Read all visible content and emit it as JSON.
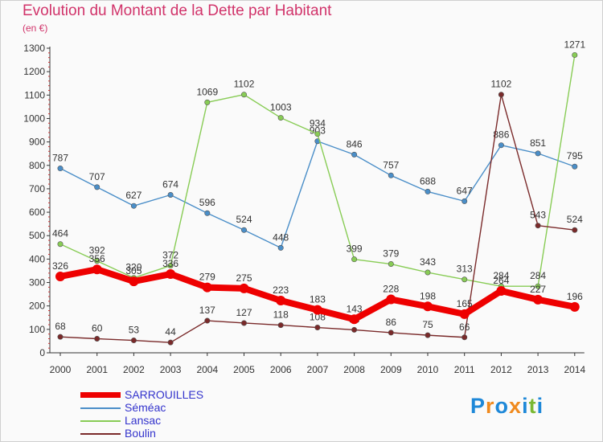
{
  "chart_data": {
    "type": "line",
    "title": "Evolution du Montant de la Dette par Habitant",
    "subtitle": "(en €)",
    "x": [
      "2000",
      "2001",
      "2002",
      "2003",
      "2004",
      "2005",
      "2006",
      "2007",
      "2008",
      "2009",
      "2010",
      "2011",
      "2012",
      "2013",
      "2014"
    ],
    "ylim": [
      0,
      1300
    ],
    "yticks": [
      0,
      100,
      200,
      300,
      400,
      500,
      600,
      700,
      800,
      900,
      1000,
      1100,
      1200,
      1300
    ],
    "grid": false,
    "legend_position": "bottom-left",
    "series": [
      {
        "name": "SARROUILLES",
        "color": "#ee0000",
        "values": [
          326,
          356,
          305,
          336,
          279,
          275,
          223,
          183,
          143,
          228,
          198,
          165,
          264,
          227,
          196
        ]
      },
      {
        "name": "Séméac",
        "color": "#4a8ec8",
        "values": [
          787,
          707,
          627,
          674,
          596,
          524,
          448,
          903,
          846,
          757,
          688,
          647,
          886,
          851,
          795
        ]
      },
      {
        "name": "Lansac",
        "color": "#88cc55",
        "values": [
          464,
          392,
          320,
          372,
          1069,
          1102,
          1003,
          934,
          399,
          379,
          343,
          313,
          284,
          284,
          1271
        ]
      },
      {
        "name": "Boulin",
        "color": "#7a2a2a",
        "values": [
          68,
          60,
          53,
          44,
          137,
          127,
          118,
          108,
          98,
          86,
          75,
          66,
          1102,
          543,
          524
        ]
      }
    ]
  },
  "logo": {
    "letters": [
      "P",
      "r",
      "o",
      "x",
      "i",
      "t",
      "i"
    ],
    "colors": [
      "#1e88d8",
      "#f08a1e",
      "#1e88d8",
      "#f08a1e",
      "#1e88d8",
      "#7ab833",
      "#1e88d8"
    ]
  }
}
